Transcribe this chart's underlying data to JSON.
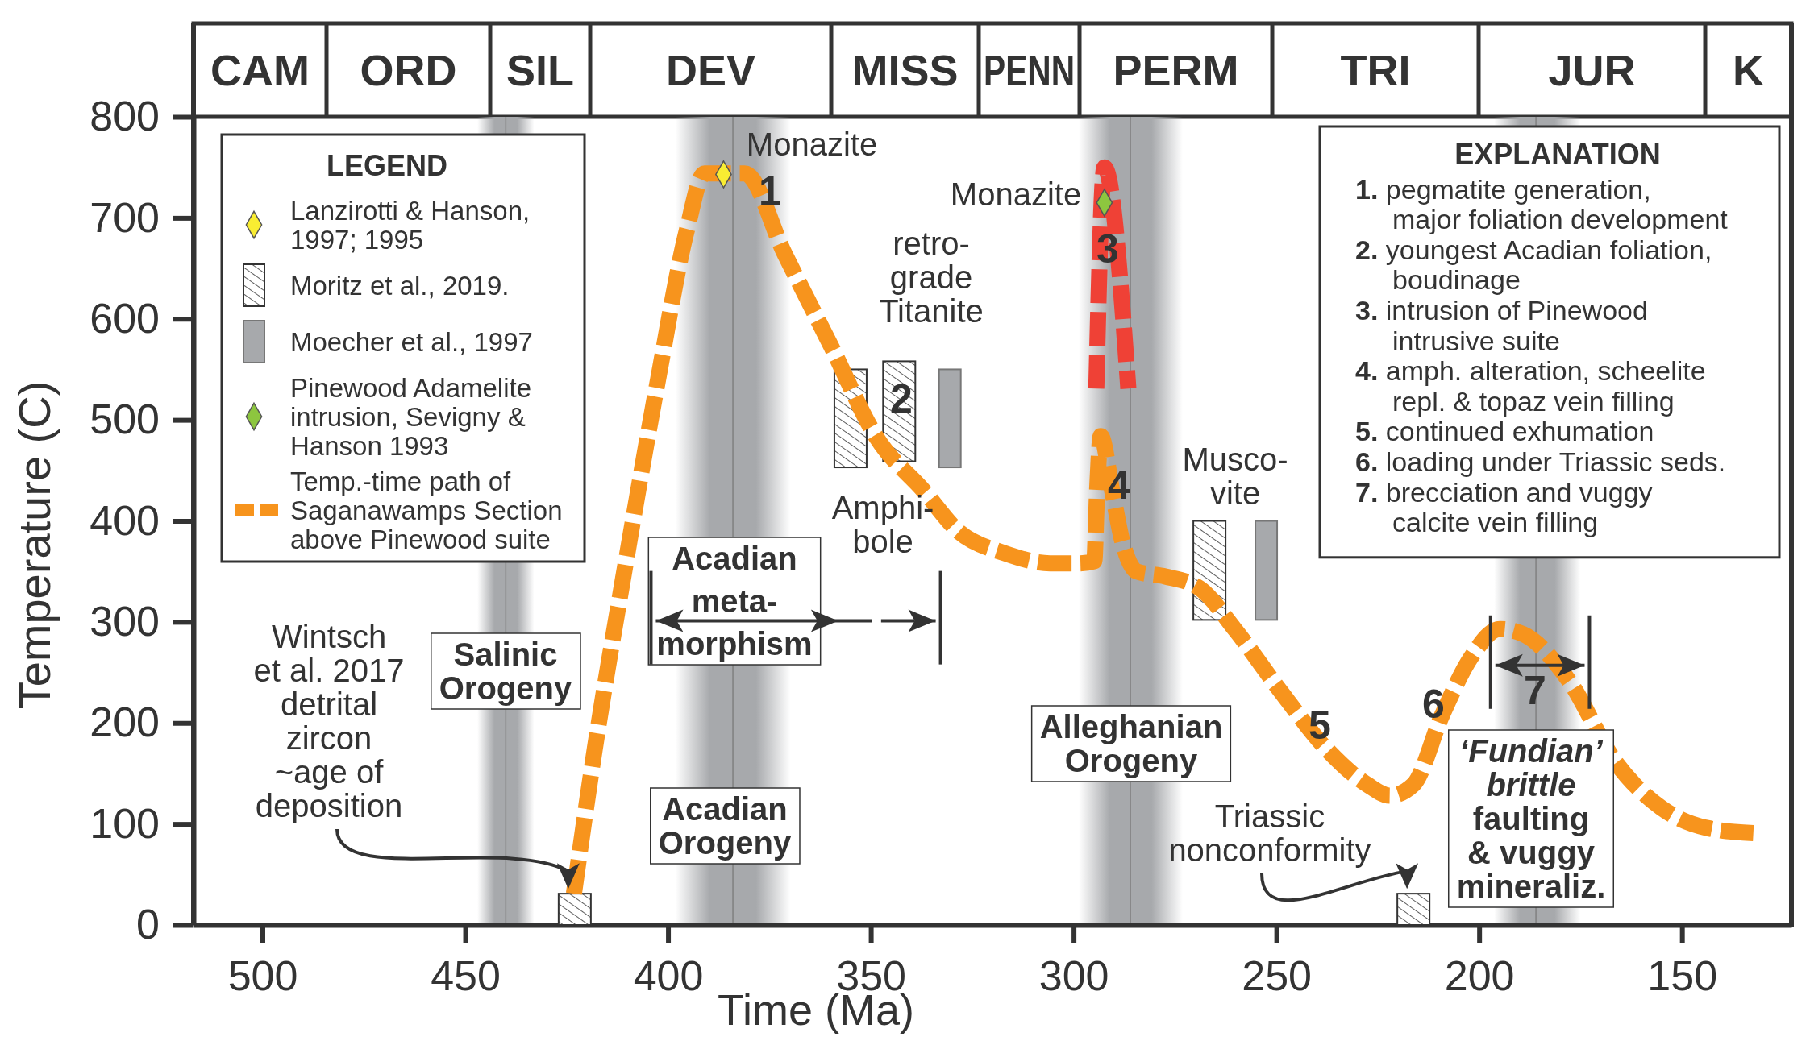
{
  "chart_data": {
    "type": "line",
    "xlabel": "Time (Ma)",
    "ylabel": "Temperature (C)",
    "legend_title": "LEGEND",
    "legend": "top left",
    "xlim": [
      517,
      123
    ],
    "xticks": [
      500,
      450,
      400,
      350,
      300,
      250,
      200,
      150
    ],
    "ylim": [
      0,
      800
    ],
    "yticks": [
      0,
      100,
      200,
      300,
      400,
      500,
      600,
      700,
      800
    ],
    "bands": [
      {
        "axis": "x",
        "from": 447,
        "to": 433,
        "color": "#a7a9ac"
      },
      {
        "axis": "x",
        "from": 398.2,
        "to": 369.8,
        "color": "#a7a9ac"
      },
      {
        "axis": "x",
        "from": 298.7,
        "to": 273.1,
        "color": "#a7a9ac"
      },
      {
        "axis": "x",
        "from": 196.3,
        "to": 175,
        "color": "#a7a9ac"
      }
    ],
    "ref_lines": [
      {
        "axis": "x",
        "value": 440,
        "color": "#808080"
      },
      {
        "axis": "x",
        "value": 384,
        "color": "#808080"
      },
      {
        "axis": "x",
        "value": 286,
        "color": "#808080"
      },
      {
        "axis": "x",
        "value": 186,
        "color": "#808080"
      }
    ],
    "series": [
      {
        "name": "Lanzirotti & Hanson, 1997; 1995",
        "type": "scatter",
        "marker": "diamond",
        "color": "#f9ed32",
        "x": [
          386.3
        ],
        "values": [
          743
        ]
      },
      {
        "name": "Moritz et al., 2019.",
        "type": "bar",
        "color": "#333333",
        "x": [
          423,
          355,
          343,
          266.5,
          216.2
        ],
        "base": [
          0,
          453,
          459,
          302,
          0
        ],
        "values": [
          31,
          97,
          99,
          98,
          31
        ]
      },
      {
        "name": "Moecher et al., 1997",
        "type": "bar",
        "color": "#a7a9ac",
        "x": [
          330.5,
          252.5
        ],
        "base": [
          453,
          302
        ],
        "values": [
          97,
          98
        ]
      },
      {
        "name": "Pinewood Adamelite intrusion, Sevigny & Hanson 1993",
        "type": "scatter",
        "marker": "diamond",
        "color": "#8dc63f",
        "x": [
          292.4
        ],
        "values": [
          715
        ]
      },
      {
        "name": "Temp.-time path of Saganawamps Section above Pinewood suite",
        "line_style": "dashed",
        "color": "#f7941d",
        "x": [
          423.2,
          418.1,
          411,
          402.5,
          395.4,
          391,
          381.1,
          371.2,
          359.8,
          348.5,
          337,
          328.5,
          317,
          305.8,
          298.7,
          294.9,
          294.2,
          293.3,
          290.5,
          288,
          284.5,
          277.4,
          268.8,
          260.3,
          248.9,
          237.6,
          227.6,
          222,
          216.2,
          209.1,
          202,
          194.9,
          189.2,
          177.9,
          166.5,
          155.1,
          143.8,
          132.4
        ],
        "values": [
          31,
          173,
          345,
          539,
          687,
          744,
          744,
          664,
          573,
          482,
          430,
          390,
          368,
          358,
          358,
          360,
          430,
          484,
          430,
          380,
          350,
          345,
          333,
          293,
          231,
          174,
          139,
          128,
          139,
          208,
          265,
          293,
          288,
          242,
          162,
          116,
          96,
          91
        ]
      },
      {
        "type": "line",
        "line_style": "dashed",
        "color": "#ef4136",
        "x": [
          294.4,
          292.4,
          286.5
        ],
        "values": [
          531,
          750,
          531
        ]
      },
      {
        "type": "line",
        "line_style": "solid",
        "color": "#333333",
        "x": [
          403,
          358
        ],
        "values": [
          301,
          301
        ]
      },
      {
        "type": "line",
        "line_style": "dashed",
        "color": "#333333",
        "x": [
          358,
          334
        ],
        "values": [
          301,
          301
        ]
      },
      {
        "type": "line",
        "line_style": "solid",
        "color": "#333333",
        "x": [
          196,
          174
        ],
        "values": [
          257,
          257
        ]
      }
    ],
    "annotations": [
      "1",
      "2",
      "3",
      "4",
      "5",
      "6",
      "7",
      "Monazite",
      "Monazite",
      "retro-\ngrade\nTitanite",
      "Amphi-\nbole",
      "Musco-\nvite",
      "Wintsch\net al. 2017\ndetrital\nzircon\n~age of\ndeposition",
      "Triassic\nnonconformity",
      "Acadian\nmeta-\nmorphism",
      "Salinic\nOrogeny",
      "Acadian\nOrogeny",
      "Alleghanian\nOrogeny",
      "‘Fundian’\nbrittle\nfaulting\n& vuggy\nmineraliz.",
      "CAM",
      "ORD",
      "SIL",
      "DEV",
      "MISS",
      "PENN",
      "PERM",
      "TRI",
      "JUR",
      "K",
      "EXPLANATION",
      "1. pegmatite generation,\nmajor foliation development",
      "2. youngest Acadian foliation,\nboudinage",
      "3. intrusion of Pinewood\nintrusive suite",
      "4. amph. alteration, scheelite\nrepl. & topaz vein filling",
      "5. continued exhumation",
      "6. loading under Triassic seds.",
      "7. brecciation and vuggy\ncalcite vein filling"
    ]
  }
}
